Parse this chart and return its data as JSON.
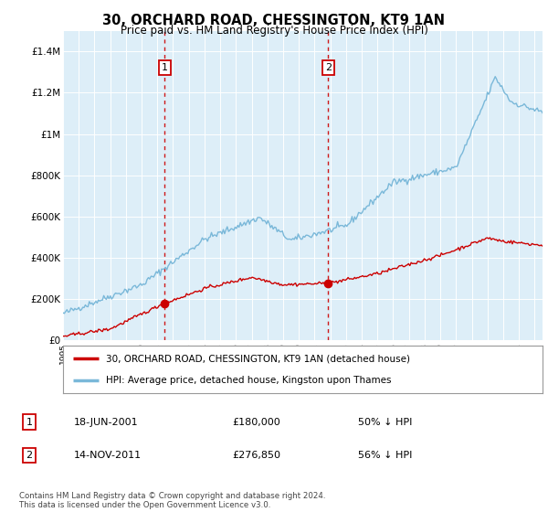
{
  "title": "30, ORCHARD ROAD, CHESSINGTON, KT9 1AN",
  "subtitle": "Price paid vs. HM Land Registry's House Price Index (HPI)",
  "ylim": [
    0,
    1500000
  ],
  "yticks": [
    0,
    200000,
    400000,
    600000,
    800000,
    1000000,
    1200000,
    1400000
  ],
  "ytick_labels": [
    "£0",
    "£200K",
    "£400K",
    "£600K",
    "£800K",
    "£1M",
    "£1.2M",
    "£1.4M"
  ],
  "legend_line1": "30, ORCHARD ROAD, CHESSINGTON, KT9 1AN (detached house)",
  "legend_line2": "HPI: Average price, detached house, Kingston upon Thames",
  "annotation1_date": "18-JUN-2001",
  "annotation1_price": "£180,000",
  "annotation1_hpi": "50% ↓ HPI",
  "annotation2_date": "14-NOV-2011",
  "annotation2_price": "£276,850",
  "annotation2_hpi": "56% ↓ HPI",
  "footer": "Contains HM Land Registry data © Crown copyright and database right 2024.\nThis data is licensed under the Open Government Licence v3.0.",
  "hpi_color": "#7ab8d9",
  "sale_color": "#cc0000",
  "annotation_color": "#cc0000",
  "plot_bg_color": "#ddeef8",
  "grid_color": "#ffffff",
  "sale1_x": 2001.46,
  "sale1_y": 180000,
  "sale2_x": 2011.87,
  "sale2_y": 276850,
  "xmin": 1995.0,
  "xmax": 2025.5
}
